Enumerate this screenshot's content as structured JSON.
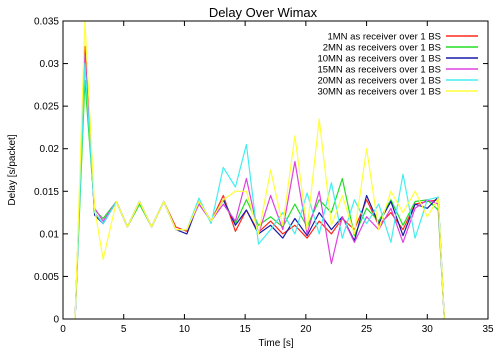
{
  "chart_data": {
    "type": "line",
    "title": "Delay Over Wimax",
    "xlabel": "Time [s]",
    "ylabel": "Delay [s/packet]",
    "xlim": [
      0,
      35
    ],
    "ylim": [
      0,
      0.035
    ],
    "x_ticks": [
      "0",
      "5",
      "10",
      "15",
      "20",
      "25",
      "30",
      "35"
    ],
    "y_ticks": [
      "0",
      "0.005",
      "0.01",
      "0.015",
      "0.02",
      "0.025",
      "0.03",
      "0.035"
    ],
    "legend_position": "top-right",
    "grid": false,
    "series": [
      {
        "name": "1MN as receiver over 1 BS",
        "color": "#ff2a1a",
        "x": [
          1,
          1.8,
          2.6,
          3.3,
          4.4,
          5.3,
          6.3,
          7.3,
          8.3,
          9.3,
          10.2,
          11.2,
          12.2,
          13.2,
          14.2,
          15.1,
          16.1,
          17.1,
          18.1,
          19.1,
          20.1,
          21.1,
          22.1,
          23.0,
          24.0,
          25.0,
          26.0,
          27.0,
          28.0,
          29.0,
          30.0,
          30.9,
          31.4
        ],
        "y": [
          0,
          0.032,
          0.0125,
          0.0112,
          0.0138,
          0.0108,
          0.0138,
          0.0108,
          0.0138,
          0.0108,
          0.0103,
          0.0138,
          0.0115,
          0.0145,
          0.0103,
          0.0128,
          0.0102,
          0.0115,
          0.01,
          0.011,
          0.0095,
          0.0115,
          0.01,
          0.0118,
          0.0105,
          0.014,
          0.011,
          0.0125,
          0.0105,
          0.0135,
          0.0138,
          0.014,
          0
        ]
      },
      {
        "name": "2MN as receivers over 1 BS",
        "color": "#22dd22",
        "x": [
          1,
          1.8,
          2.6,
          3.3,
          4.4,
          5.3,
          6.3,
          7.3,
          8.3,
          9.3,
          10.2,
          11.2,
          12.2,
          13.2,
          14.2,
          15.1,
          16.1,
          17.1,
          18.1,
          19.1,
          20.1,
          21.1,
          22.1,
          23.0,
          24.0,
          25.0,
          26.0,
          27.0,
          28.0,
          29.0,
          30.0,
          30.9,
          31.4
        ],
        "y": [
          0,
          0.028,
          0.0128,
          0.0118,
          0.0138,
          0.0108,
          0.0135,
          0.0108,
          0.0138,
          0.0105,
          0.0105,
          0.0135,
          0.0115,
          0.014,
          0.0112,
          0.014,
          0.011,
          0.012,
          0.0108,
          0.0135,
          0.0108,
          0.014,
          0.0125,
          0.0165,
          0.0098,
          0.013,
          0.0115,
          0.014,
          0.011,
          0.0138,
          0.014,
          0.0128,
          0
        ]
      },
      {
        "name": "10MN as receivers over 1 BS",
        "color": "#1a1aa8",
        "x": [
          1,
          1.8,
          2.6,
          3.3,
          4.4,
          5.3,
          6.3,
          7.3,
          8.3,
          9.3,
          10.2,
          11.2,
          12.2,
          13.2,
          14.2,
          15.1,
          16.1,
          17.1,
          18.1,
          19.1,
          20.1,
          21.1,
          22.1,
          23.0,
          24.0,
          25.0,
          26.0,
          27.0,
          28.0,
          29.0,
          30.0,
          30.9,
          31.4
        ],
        "y": [
          0,
          0.031,
          0.0122,
          0.0112,
          0.0138,
          0.0108,
          0.0138,
          0.0108,
          0.0138,
          0.0105,
          0.01,
          0.0138,
          0.0115,
          0.014,
          0.011,
          0.0128,
          0.01,
          0.011,
          0.0095,
          0.0118,
          0.0098,
          0.0125,
          0.0105,
          0.012,
          0.0092,
          0.0145,
          0.0112,
          0.0138,
          0.0098,
          0.0135,
          0.013,
          0.0143,
          0
        ]
      },
      {
        "name": "15MN as receivers over 1 BS",
        "color": "#e040e0",
        "x": [
          1,
          1.8,
          2.6,
          3.3,
          4.4,
          5.3,
          6.3,
          7.3,
          8.3,
          9.3,
          10.2,
          11.2,
          12.2,
          13.2,
          14.2,
          15.1,
          16.1,
          17.1,
          18.1,
          19.1,
          20.1,
          21.1,
          22.1,
          23.0,
          24.0,
          25.0,
          26.0,
          27.0,
          28.0,
          29.0,
          30.0,
          30.9,
          31.4
        ],
        "y": [
          0,
          0.031,
          0.013,
          0.0115,
          0.0138,
          0.0108,
          0.0138,
          0.0108,
          0.0138,
          0.0105,
          0.0105,
          0.0135,
          0.0115,
          0.0135,
          0.0115,
          0.0165,
          0.01,
          0.0145,
          0.0105,
          0.0185,
          0.01,
          0.015,
          0.0065,
          0.012,
          0.009,
          0.012,
          0.0105,
          0.013,
          0.009,
          0.013,
          0.014,
          0.0135,
          0
        ]
      },
      {
        "name": "20MN as receivers over 1 BS",
        "color": "#44eeee",
        "x": [
          1,
          1.8,
          2.6,
          3.3,
          4.4,
          5.3,
          6.3,
          7.3,
          8.3,
          9.3,
          10.2,
          11.2,
          12.2,
          13.2,
          14.2,
          15.1,
          16.1,
          17.1,
          18.1,
          19.1,
          20.1,
          21.1,
          22.1,
          23.0,
          24.0,
          25.0,
          26.0,
          27.0,
          28.0,
          29.0,
          30.0,
          30.9,
          31.4
        ],
        "y": [
          0,
          0.03,
          0.0125,
          0.0112,
          0.0138,
          0.0108,
          0.0138,
          0.0108,
          0.0138,
          0.0105,
          0.0105,
          0.0142,
          0.0112,
          0.0178,
          0.0155,
          0.0205,
          0.0088,
          0.0105,
          0.0125,
          0.01,
          0.0148,
          0.01,
          0.016,
          0.0095,
          0.014,
          0.0112,
          0.0135,
          0.009,
          0.017,
          0.0095,
          0.014,
          0.0143,
          0
        ]
      },
      {
        "name": "30MN as receivers over 1 BS",
        "color": "#ffff3c",
        "x": [
          1,
          1.8,
          2.6,
          3.3,
          4.4,
          5.3,
          6.3,
          7.3,
          8.3,
          9.3,
          10.2,
          11.2,
          12.2,
          13.2,
          14.2,
          15.1,
          16.1,
          17.1,
          18.1,
          19.1,
          20.1,
          21.1,
          22.1,
          23.0,
          24.0,
          25.0,
          26.0,
          27.0,
          28.0,
          29.0,
          30.0,
          30.9,
          31.4
        ],
        "y": [
          0,
          0.035,
          0.013,
          0.007,
          0.0138,
          0.0108,
          0.0138,
          0.0108,
          0.0138,
          0.0105,
          0.0105,
          0.0138,
          0.0115,
          0.014,
          0.015,
          0.015,
          0.01,
          0.0175,
          0.011,
          0.0215,
          0.0105,
          0.0235,
          0.011,
          0.0145,
          0.01,
          0.02,
          0.0105,
          0.015,
          0.0125,
          0.015,
          0.012,
          0.0142,
          0
        ]
      }
    ]
  }
}
